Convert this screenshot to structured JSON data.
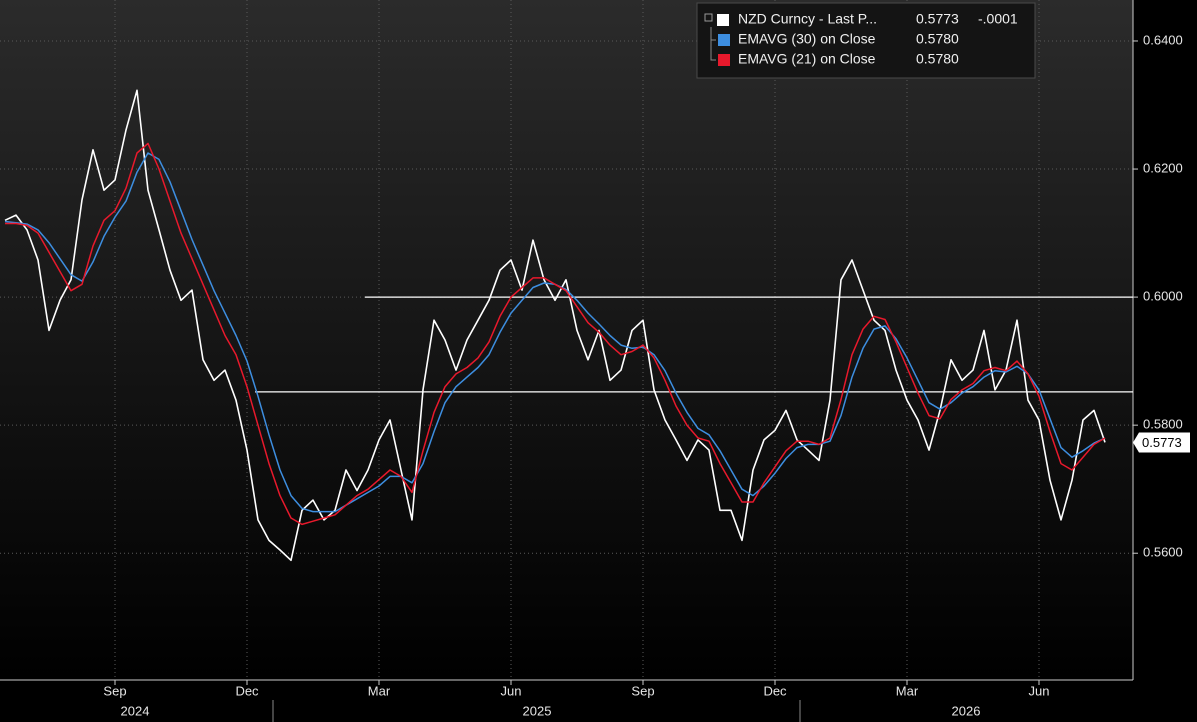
{
  "chart_data": {
    "type": "line",
    "categories": [
      null,
      null,
      null,
      null,
      null,
      null,
      null,
      null,
      null,
      null,
      "Sep",
      null,
      null,
      null,
      null,
      null,
      null,
      null,
      null,
      null,
      null,
      null,
      "Dec",
      null,
      null,
      null,
      null,
      null,
      null,
      null,
      null,
      null,
      null,
      null,
      "Mar",
      null,
      null,
      null,
      null,
      null,
      null,
      null,
      null,
      null,
      null,
      null,
      "Jun",
      null,
      null,
      null,
      null,
      null,
      null,
      null,
      null,
      null,
      null,
      null,
      "Sep",
      null,
      null,
      null,
      null,
      null,
      null,
      null,
      null,
      null,
      null,
      null,
      "Dec",
      null,
      null,
      null,
      null,
      null,
      null,
      null,
      null,
      null,
      null,
      null,
      "Mar",
      null,
      null,
      null,
      null,
      null,
      null,
      null,
      null,
      null,
      null,
      null,
      "Jun",
      null,
      null,
      null,
      null,
      null,
      null
    ],
    "x_years": [
      "2024",
      "2025",
      "2026"
    ],
    "series": [
      {
        "name": "NZD Curncy - Last P...",
        "legend_value": "0.5773",
        "legend_change": "-.0001",
        "color": "#ffffff",
        "values": [
          0.612,
          0.6128,
          0.6105,
          0.6058,
          0.5948,
          0.5995,
          0.6027,
          0.6152,
          0.623,
          0.6167,
          0.6183,
          0.6261,
          0.6323,
          0.6167,
          0.6105,
          0.6042,
          0.5995,
          0.6011,
          0.5902,
          0.587,
          0.5886,
          0.5839,
          0.5761,
          0.5652,
          0.562,
          0.5605,
          0.5589,
          0.5667,
          0.5683,
          0.5652,
          0.5667,
          0.573,
          0.5698,
          0.573,
          0.5777,
          0.5808,
          0.573,
          0.5652,
          0.5855,
          0.5964,
          0.5933,
          0.5886,
          0.5933,
          0.5964,
          0.5995,
          0.6042,
          0.6058,
          0.6011,
          0.6089,
          0.6027,
          0.5995,
          0.6027,
          0.5948,
          0.5902,
          0.5948,
          0.587,
          0.5886,
          0.5948,
          0.5964,
          0.5855,
          0.5808,
          0.5777,
          0.5745,
          0.5777,
          0.5761,
          0.5667,
          0.5667,
          0.562,
          0.573,
          0.5777,
          0.5792,
          0.5823,
          0.5777,
          0.5761,
          0.5745,
          0.5839,
          0.6027,
          0.6058,
          0.6011,
          0.5964,
          0.5948,
          0.5886,
          0.5839,
          0.5808,
          0.5761,
          0.5823,
          0.5902,
          0.587,
          0.5886,
          0.5948,
          0.5855,
          0.5886,
          0.5964,
          0.5839,
          0.5808,
          0.5714,
          0.5652,
          0.5714,
          0.5808,
          0.5823,
          0.5773
        ]
      },
      {
        "name": "EMAVG (30)  on Close",
        "legend_value": "0.5780",
        "color": "#3d8ee0",
        "values": [
          0.6118,
          0.6116,
          0.6114,
          0.6105,
          0.6085,
          0.606,
          0.6035,
          0.6025,
          0.6055,
          0.6095,
          0.6125,
          0.615,
          0.6195,
          0.6225,
          0.6215,
          0.618,
          0.6135,
          0.609,
          0.605,
          0.601,
          0.5975,
          0.594,
          0.59,
          0.5845,
          0.5785,
          0.573,
          0.569,
          0.567,
          0.5665,
          0.5665,
          0.5665,
          0.5675,
          0.5685,
          0.5695,
          0.5705,
          0.572,
          0.572,
          0.571,
          0.574,
          0.579,
          0.5835,
          0.586,
          0.5875,
          0.589,
          0.591,
          0.5945,
          0.5975,
          0.5995,
          0.6015,
          0.6022,
          0.602,
          0.6012,
          0.5995,
          0.5975,
          0.5958,
          0.594,
          0.5925,
          0.592,
          0.5922,
          0.591,
          0.5885,
          0.585,
          0.582,
          0.5795,
          0.5785,
          0.576,
          0.573,
          0.57,
          0.569,
          0.5705,
          0.5725,
          0.5748,
          0.5765,
          0.577,
          0.577,
          0.5775,
          0.5815,
          0.5875,
          0.592,
          0.595,
          0.5955,
          0.5935,
          0.5905,
          0.587,
          0.5835,
          0.5825,
          0.5835,
          0.585,
          0.586,
          0.5875,
          0.5885,
          0.5883,
          0.5892,
          0.588,
          0.5855,
          0.581,
          0.5765,
          0.575,
          0.576,
          0.5772,
          0.578
        ]
      },
      {
        "name": "EMAVG (21)  on Close",
        "legend_value": "0.5780",
        "color": "#e8192c",
        "values": [
          0.6115,
          0.6115,
          0.6112,
          0.61,
          0.607,
          0.604,
          0.601,
          0.602,
          0.608,
          0.612,
          0.6135,
          0.617,
          0.6225,
          0.624,
          0.62,
          0.615,
          0.61,
          0.606,
          0.602,
          0.598,
          0.594,
          0.591,
          0.586,
          0.58,
          0.574,
          0.569,
          0.5655,
          0.5645,
          0.565,
          0.5655,
          0.566,
          0.5675,
          0.569,
          0.57,
          0.5715,
          0.573,
          0.572,
          0.5695,
          0.576,
          0.582,
          0.586,
          0.588,
          0.589,
          0.5905,
          0.593,
          0.597,
          0.6,
          0.6015,
          0.603,
          0.603,
          0.602,
          0.601,
          0.5985,
          0.596,
          0.5945,
          0.5925,
          0.591,
          0.5915,
          0.5925,
          0.5905,
          0.587,
          0.583,
          0.58,
          0.578,
          0.5775,
          0.574,
          0.571,
          0.568,
          0.568,
          0.571,
          0.5735,
          0.576,
          0.5775,
          0.5775,
          0.577,
          0.578,
          0.584,
          0.591,
          0.595,
          0.597,
          0.5965,
          0.593,
          0.589,
          0.585,
          0.5815,
          0.581,
          0.584,
          0.5855,
          0.5865,
          0.5885,
          0.589,
          0.5885,
          0.59,
          0.588,
          0.5845,
          0.579,
          0.574,
          0.573,
          0.575,
          0.577,
          0.578
        ]
      }
    ],
    "hlines": [
      0.6,
      0.5852
    ],
    "last_price": {
      "value": 0.5773,
      "label": "0.5773"
    },
    "ylim": [
      0.5402,
      0.6464
    ],
    "yticks": [
      {
        "value": 0.64,
        "label": "0.6400"
      },
      {
        "value": 0.62,
        "label": "0.6200"
      },
      {
        "value": 0.6,
        "label": "0.6000"
      },
      {
        "value": 0.58,
        "label": "0.5800"
      },
      {
        "value": 0.56,
        "label": "0.5600"
      }
    ],
    "grid": true
  }
}
